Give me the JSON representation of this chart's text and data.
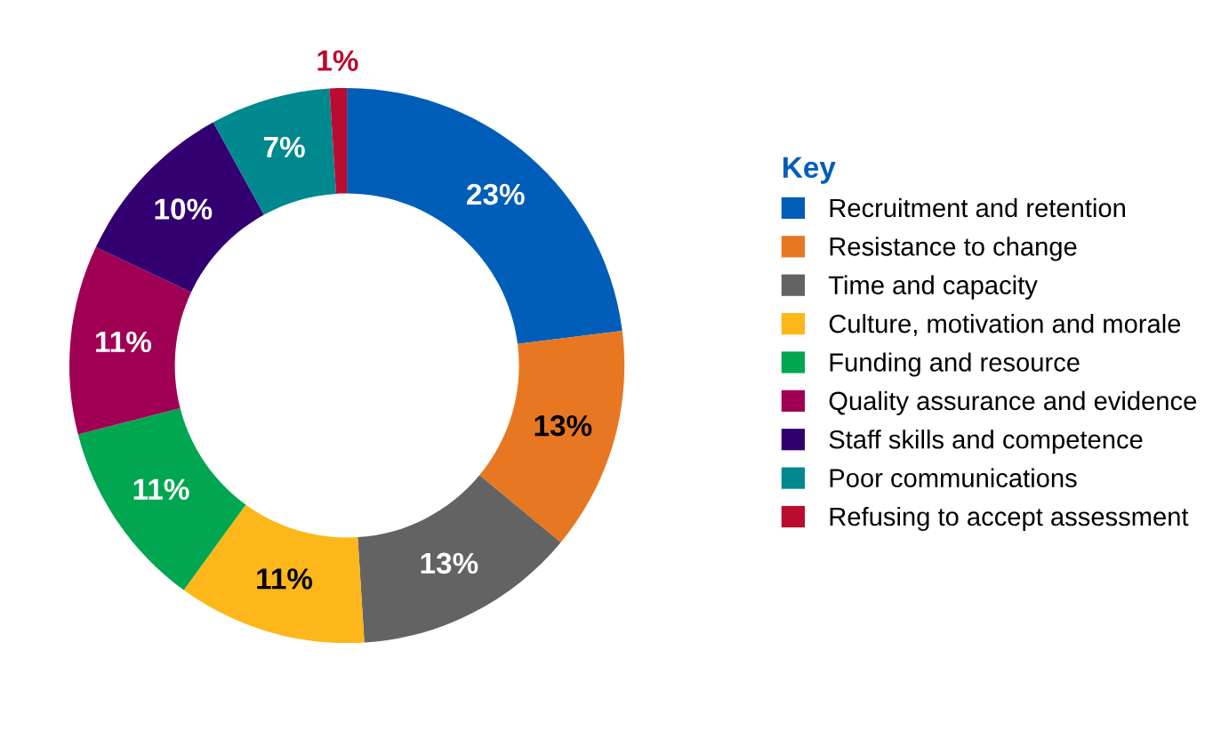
{
  "chart_data": {
    "type": "donut",
    "categories": [
      "Recruitment and retention",
      "Resistance to change",
      "Time and capacity",
      "Culture, motivation and morale",
      "Funding and resource",
      "Quality assurance and evidence",
      "Staff skills and competence",
      "Poor communications",
      "Refusing to accept assessment"
    ],
    "values": [
      23,
      13,
      13,
      11,
      11,
      11,
      10,
      7,
      1
    ],
    "value_labels": [
      "23%",
      "13%",
      "13%",
      "11%",
      "11%",
      "11%",
      "10%",
      "7%",
      "1%"
    ],
    "colors": [
      "#005eb8",
      "#e87722",
      "#636363",
      "#fdb71a",
      "#00a650",
      "#a00054",
      "#330072",
      "#00888f",
      "#ba0c2f"
    ],
    "legend": "right",
    "legend_title": "Key"
  }
}
